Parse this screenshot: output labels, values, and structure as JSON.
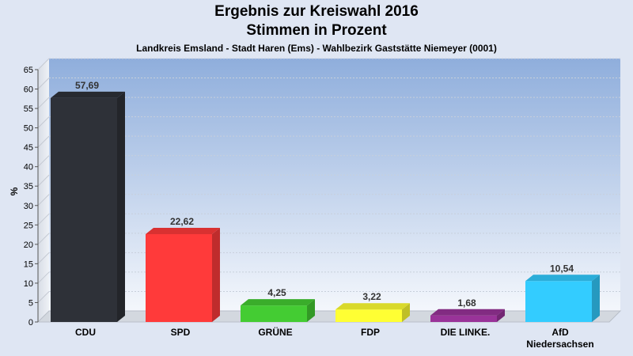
{
  "chart_data": {
    "type": "bar",
    "title": "Ergebnis zur Kreiswahl 2016",
    "subtitle": "Stimmen in Prozent",
    "caption": "Landkreis Emsland - Stadt Haren (Ems) - Wahlbezirk Gaststätte Niemeyer (0001)",
    "ylabel": "%",
    "xlabel": "",
    "ylim": [
      0,
      65
    ],
    "yticks": [
      0,
      5,
      10,
      15,
      20,
      25,
      30,
      35,
      40,
      45,
      50,
      55,
      60,
      65
    ],
    "grid": true,
    "categories": [
      [
        "CDU"
      ],
      [
        "SPD"
      ],
      [
        "GRÜNE"
      ],
      [
        "FDP"
      ],
      [
        "DIE LINKE."
      ],
      [
        "AfD",
        "Niedersachsen"
      ]
    ],
    "values": [
      57.69,
      22.62,
      4.25,
      3.22,
      1.68,
      10.54
    ],
    "value_labels": [
      "57,69",
      "22,62",
      "4,25",
      "3,22",
      "1,68",
      "10,54"
    ],
    "colors": [
      "#2e3138",
      "#ff3a3a",
      "#44cc33",
      "#ffff33",
      "#993399",
      "#33ccff"
    ]
  }
}
